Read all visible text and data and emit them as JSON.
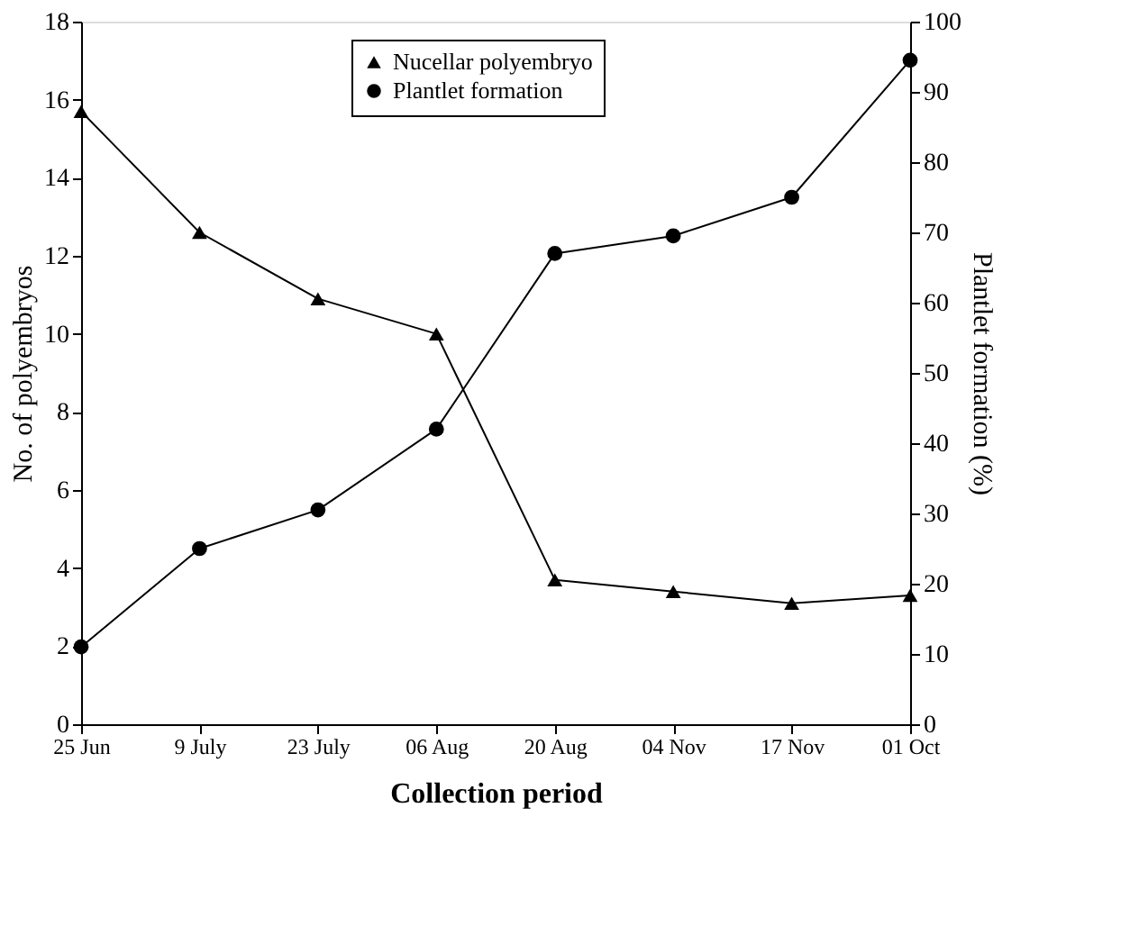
{
  "chart_data": {
    "type": "line",
    "xlabel": "Collection period",
    "ylabel": "No. of polyembryos",
    "y2label": "Plantlet formation  (%)",
    "categories": [
      "25 Jun",
      "9 July",
      "23 July",
      "06 Aug",
      "20 Aug",
      "04 Nov",
      "17 Nov",
      "01 Oct"
    ],
    "series": [
      {
        "name": "Nucellar polyembryo",
        "color": "#000000",
        "marker": "triangle",
        "values": [
          15.7,
          12.6,
          10.9,
          10.0,
          3.7,
          3.4,
          3.1,
          3.3
        ]
      },
      {
        "name": "Plantlet formation",
        "color": "#000000",
        "marker": "circle",
        "axis": "y2",
        "values": [
          11,
          25,
          30.5,
          42,
          67,
          69.5,
          75,
          94.5
        ]
      }
    ],
    "ylim": [
      0,
      18
    ],
    "yticks": [
      0,
      2,
      4,
      6,
      8,
      10,
      12,
      14,
      16,
      18
    ],
    "y2lim": [
      0,
      100
    ],
    "y2ticks": [
      0,
      10,
      20,
      30,
      40,
      50,
      60,
      70,
      80,
      90,
      100
    ],
    "legend": "top",
    "grid": false,
    "line_style": "solid"
  }
}
